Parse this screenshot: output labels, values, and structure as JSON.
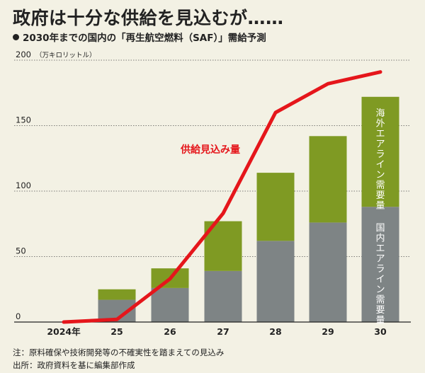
{
  "title": "政府は十分な供給を見込むが……",
  "subtitle": "2030年までの国内の「再生航空燃料（SAF）」需給予測",
  "notes": [
    "注：原料確保や技術開発等の不確実性を踏まえての見込み",
    "出所：政府資料を基に編集部作成"
  ],
  "colors": {
    "background": "#f3f1e4",
    "domestic": "#7e8485",
    "overseas": "#7f9a23",
    "supply_line": "#e5161b"
  },
  "chart_data": {
    "type": "bar",
    "stacked": true,
    "categories": [
      "2024年",
      "25",
      "26",
      "27",
      "28",
      "29",
      "30"
    ],
    "series": [
      {
        "name": "国内エアライン需要量",
        "values": [
          0,
          17,
          26,
          39,
          62,
          76,
          88
        ]
      },
      {
        "name": "海外エアライン需要量",
        "values": [
          0,
          8,
          15,
          38,
          52,
          66,
          84
        ]
      }
    ],
    "line": {
      "name": "供給見込み量",
      "values": [
        0,
        2,
        33,
        83,
        160,
        182,
        191
      ]
    },
    "yticks": [
      0,
      50,
      100,
      150,
      200
    ],
    "ylim": [
      0,
      200
    ],
    "yunit": "（万キロリットル）",
    "grid": true
  }
}
